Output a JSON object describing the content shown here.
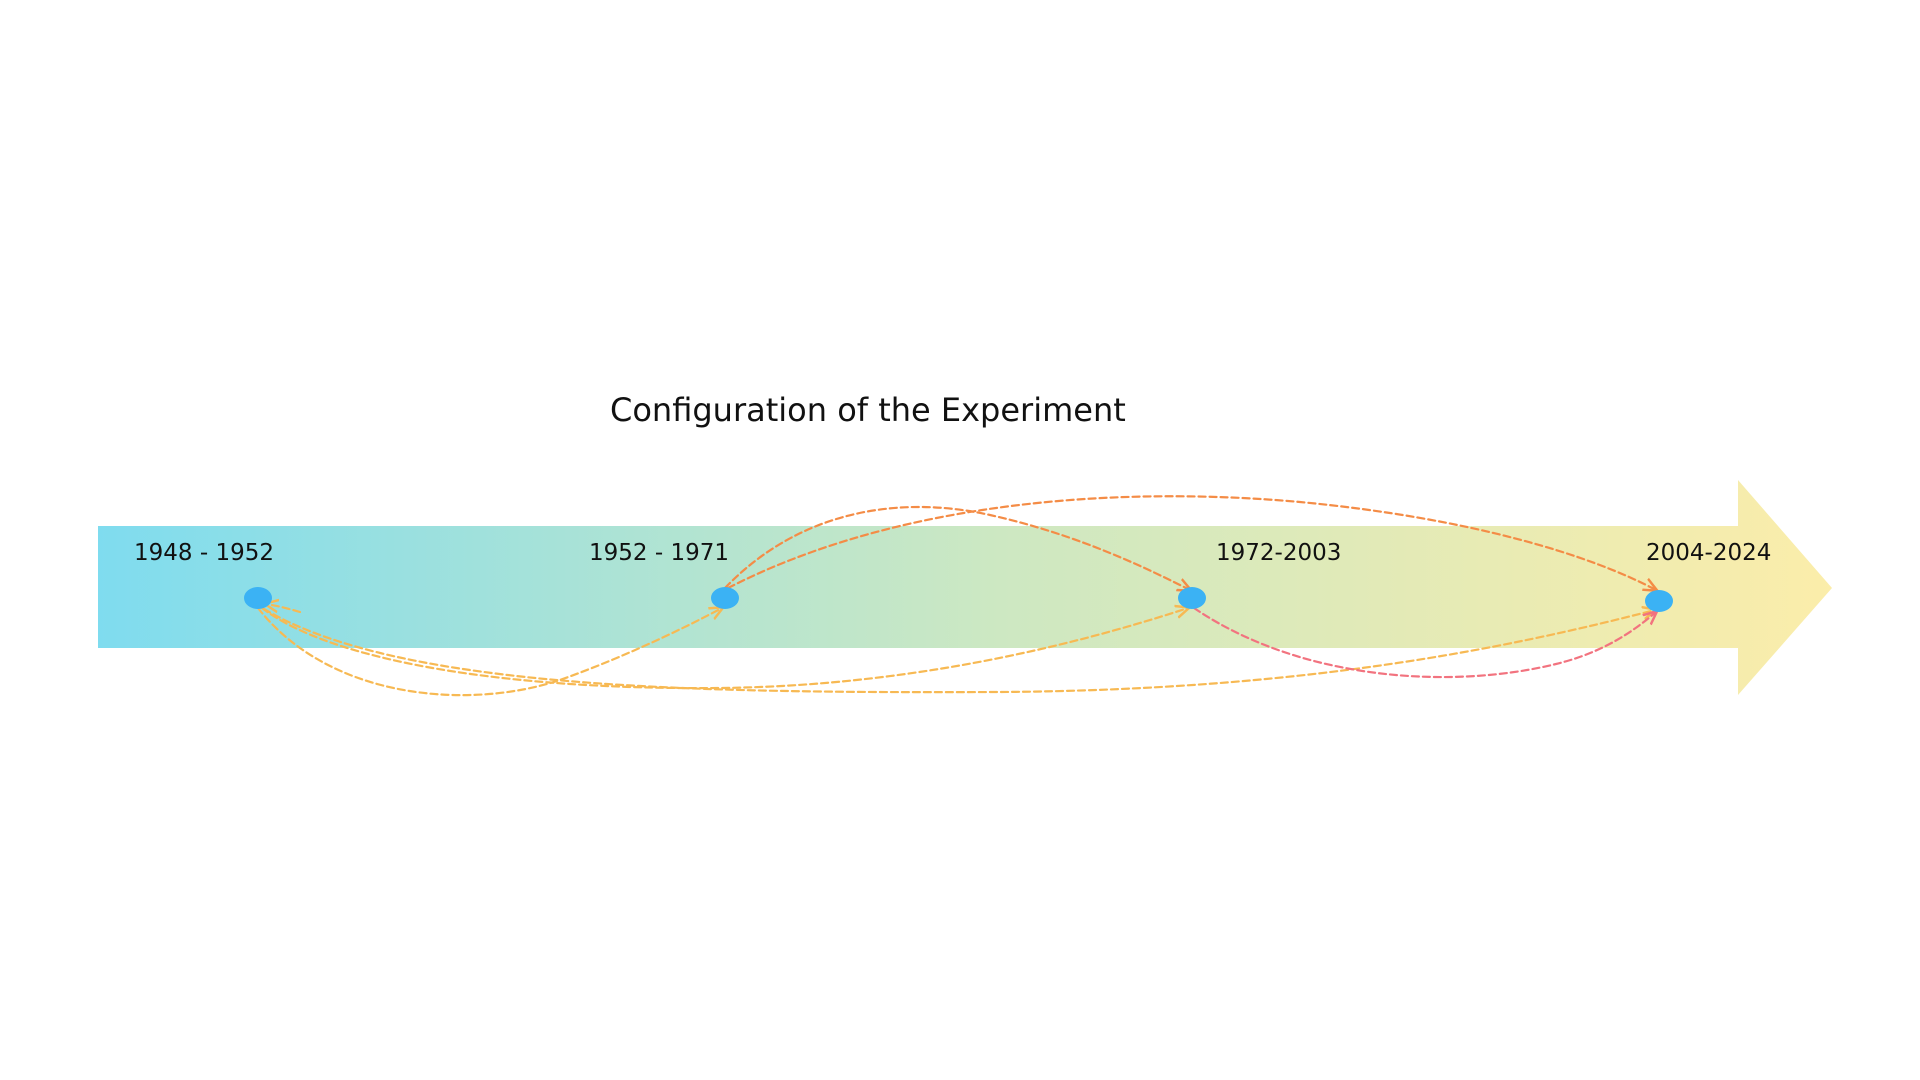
{
  "title": "Configuration of the Experiment",
  "colors": {
    "arrow_gradient": [
      "#7fdcef",
      "#cde8c2",
      "#fbedaa"
    ],
    "node": "#3bb2f4",
    "link_yellow": "#f7b953",
    "link_orange": "#f48c46",
    "link_red": "#f2737f"
  },
  "periods": [
    {
      "id": "p1",
      "label": "1948 - 1952"
    },
    {
      "id": "p2",
      "label": "1952 - 1971"
    },
    {
      "id": "p3",
      "label": "1972-2003"
    },
    {
      "id": "p4",
      "label": "2004-2024"
    }
  ],
  "links": [
    {
      "from": "p1",
      "to": "p2",
      "color": "link_yellow"
    },
    {
      "from": "p1",
      "to": "p3",
      "color": "link_yellow"
    },
    {
      "from": "p1",
      "to": "p4",
      "color": "link_yellow"
    },
    {
      "from": "p2",
      "to": "p3",
      "color": "link_orange"
    },
    {
      "from": "p2",
      "to": "p4",
      "color": "link_orange"
    },
    {
      "from": "p3",
      "to": "p4",
      "color": "link_red"
    }
  ]
}
